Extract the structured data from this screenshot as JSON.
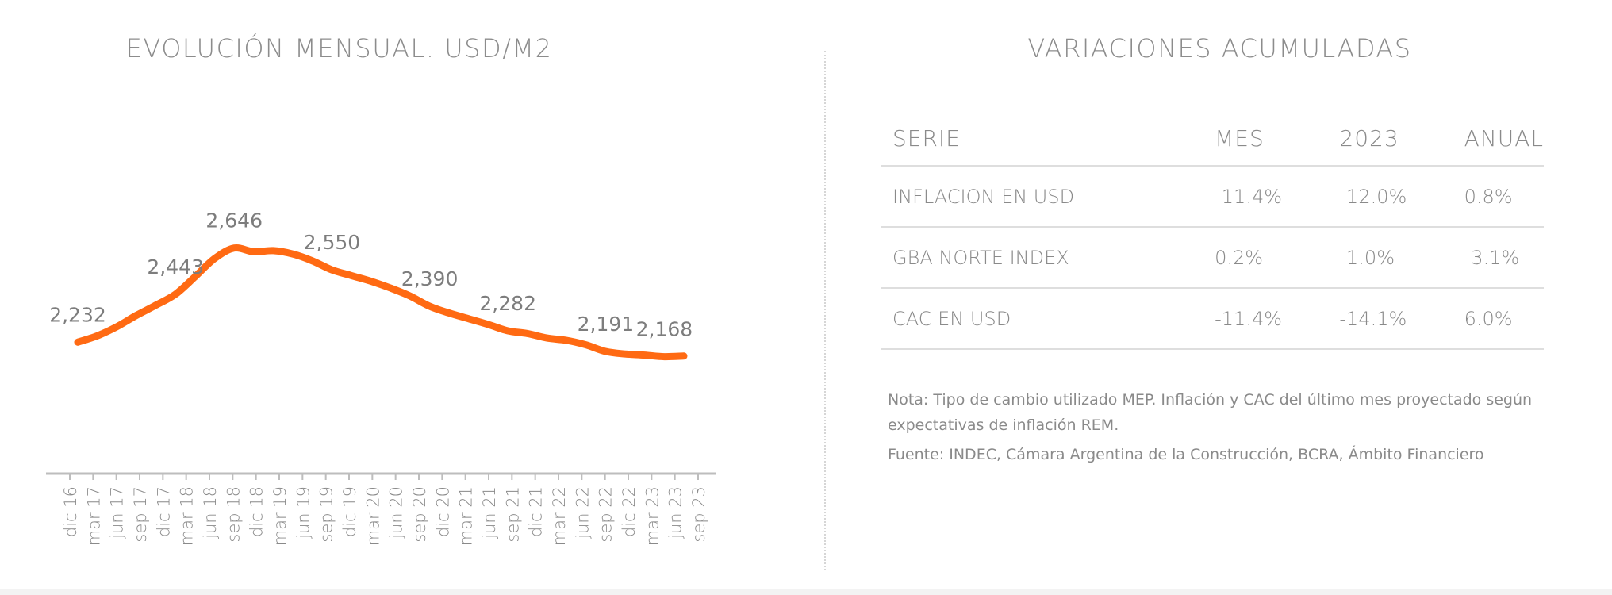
{
  "left_title": "EVOLUCIÓN MENSUAL. USD/M2",
  "right_title": "VARIACIONES ACUMULADAS",
  "chart_data": {
    "type": "line",
    "title": "EVOLUCIÓN MENSUAL. USD/M2",
    "xlabel": "",
    "ylabel": "",
    "x_tick_labels": [
      "dic 16",
      "mar 17",
      "jun 17",
      "sep 17",
      "dic 17",
      "mar 18",
      "jun 18",
      "sep 18",
      "dic 18",
      "mar 19",
      "jun 19",
      "sep 19",
      "dic 19",
      "mar 20",
      "jun 20",
      "sep 20",
      "dic 20",
      "mar 21",
      "jun 21",
      "sep 21",
      "dic 21",
      "mar 22",
      "jun 22",
      "sep 22",
      "dic 22",
      "mar 23",
      "jun 23",
      "sep 23"
    ],
    "series": [
      {
        "values": [
          2232,
          2260,
          2300,
          2350,
          2395,
          2443,
          2520,
          2600,
          2646,
          2630,
          2635,
          2620,
          2590,
          2550,
          2525,
          2500,
          2470,
          2435,
          2390,
          2360,
          2335,
          2310,
          2282,
          2270,
          2250,
          2240,
          2220,
          2191,
          2180,
          2175,
          2168,
          2171
        ]
      }
    ],
    "data_labels": [
      {
        "text": "2,232",
        "index": 0
      },
      {
        "text": "2,443",
        "index": 5
      },
      {
        "text": "2,646",
        "index": 8
      },
      {
        "text": "2,550",
        "index": 13
      },
      {
        "text": "2,390",
        "index": 18
      },
      {
        "text": "2,282",
        "index": 22
      },
      {
        "text": "2,191",
        "index": 27
      },
      {
        "text": "2,168",
        "index": 30
      }
    ],
    "y_range": [
      1800,
      2900
    ],
    "grid": false,
    "legend": "none",
    "line_color": "#ff6a13"
  },
  "table": {
    "headers": [
      "SERIE",
      "MES",
      "2023",
      "ANUAL"
    ],
    "rows": [
      [
        "INFLACION EN USD",
        "-11.4%",
        "-12.0%",
        "0.8%"
      ],
      [
        "GBA NORTE INDEX",
        "0.2%",
        "-1.0%",
        "-3.1%"
      ],
      [
        "CAC EN USD",
        "-11.4%",
        "-14.1%",
        "6.0%"
      ]
    ]
  },
  "notes": {
    "nota": "Nota: Tipo de cambio utilizado MEP. Inflación y CAC del último mes proyectado según expectativas de inflación REM.",
    "fuente": "Fuente: INDEC, Cámara Argentina de la Construcción, BCRA, Ámbito Financiero"
  }
}
